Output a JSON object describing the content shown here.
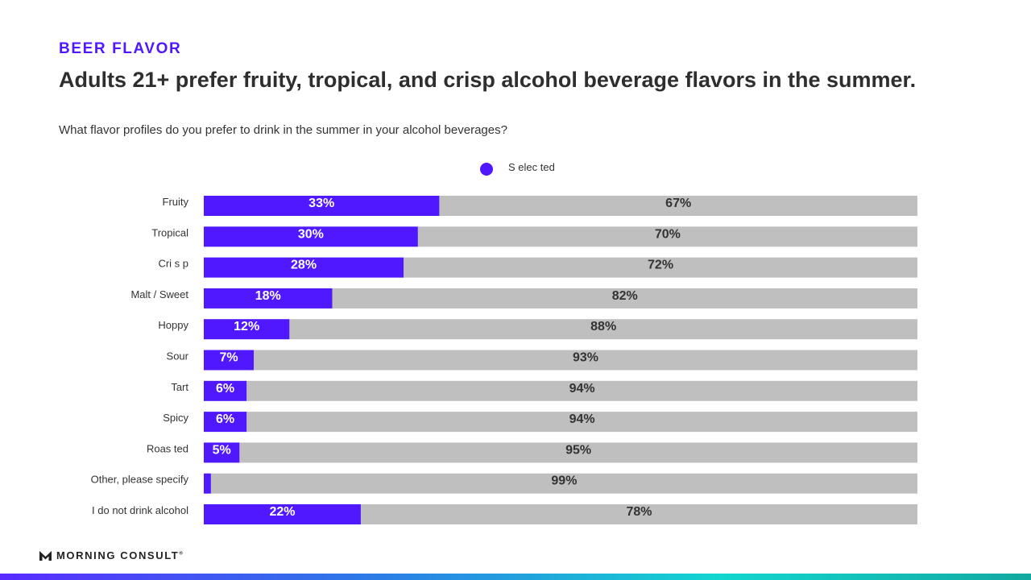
{
  "eyebrow": "BEER FLAVOR",
  "title": "Adults 21+ prefer fruity, tropical, and crisp alcohol beverage flavors in the summer.",
  "question": "What flavor profiles do you prefer to drink in the summer in your alcohol beverages?",
  "legend": {
    "label": "S elec ted",
    "color": "#5018ff"
  },
  "colors": {
    "selected": "#5018ff",
    "not_selected": "#bfbfbf",
    "selected_label": "#ffffff",
    "not_selected_label": "#333333"
  },
  "footer": {
    "brand": "MORNING CONSULT",
    "mark": "®"
  },
  "chart_data": {
    "type": "bar",
    "orientation": "horizontal",
    "stacked": true,
    "categories": [
      "Fruity",
      "Tropical",
      "Cri s p",
      "Malt / Sweet",
      "Hoppy",
      "Sour",
      "Tart",
      "Spicy",
      "Roas ted",
      "Other, please specify",
      "I do not drink alcohol"
    ],
    "series": [
      {
        "name": "S elec ted",
        "values": [
          33,
          30,
          28,
          18,
          12,
          7,
          6,
          6,
          5,
          1,
          22
        ],
        "labels": [
          "33%",
          "30%",
          "28%",
          "18%",
          "12%",
          "7%",
          "6%",
          "6%",
          "5%",
          "",
          "22%"
        ]
      },
      {
        "values": [
          67,
          70,
          72,
          82,
          88,
          93,
          94,
          94,
          95,
          99,
          78
        ],
        "labels": [
          "67%",
          "70%",
          "72%",
          "82%",
          "88%",
          "93%",
          "94%",
          "94%",
          "95%",
          "99%",
          "78%"
        ]
      }
    ],
    "xlim": [
      0,
      100
    ],
    "legend_position": "top-center",
    "grid": false
  }
}
